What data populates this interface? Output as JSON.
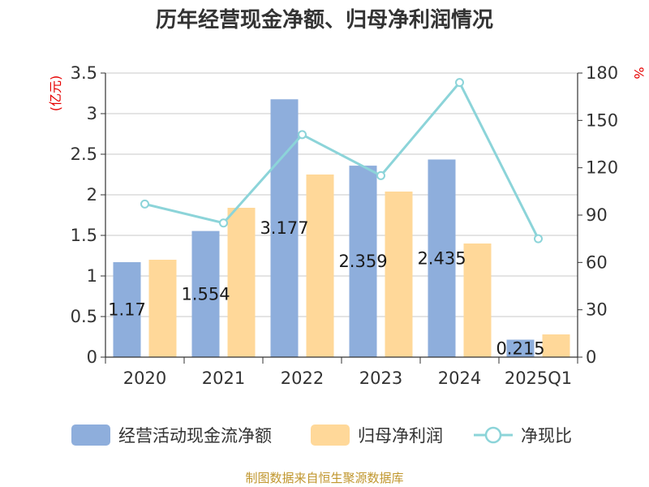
{
  "colors": {
    "cash_flow": "#8eaedc",
    "net_profit": "#ffd899",
    "ratio": "#8cd4d9",
    "axis": "#333333",
    "grid": "#c8c8c8",
    "unit": "#e60000",
    "source": "#c0962d"
  },
  "chart_data": {
    "type": "bar",
    "title": "历年经营现金净额、归母净利润情况",
    "categories": [
      "2020",
      "2021",
      "2022",
      "2023",
      "2024",
      "2025Q1"
    ],
    "left_axis": {
      "unit": "(亿元)",
      "ylim": [
        0,
        3.5
      ],
      "ticks": [
        "0",
        "0.5",
        "1",
        "1.5",
        "2",
        "2.5",
        "3",
        "3.5"
      ]
    },
    "right_axis": {
      "unit": "%",
      "ylim": [
        0,
        180
      ],
      "ticks": [
        "0",
        "30",
        "60",
        "90",
        "120",
        "150",
        "180"
      ]
    },
    "grid": true,
    "legend_position": "bottom",
    "series": [
      {
        "name": "经营活动现金流净额",
        "kind": "bar",
        "axis": "left",
        "color": "#8eaedc",
        "values": [
          1.17,
          1.554,
          3.177,
          2.359,
          2.435,
          0.215
        ],
        "labels": [
          "1.17",
          "1.554",
          "3.177",
          "2.359",
          "2.435",
          "0.215"
        ]
      },
      {
        "name": "归母净利润",
        "kind": "bar",
        "axis": "left",
        "color": "#ffd899",
        "values": [
          1.2,
          1.84,
          2.25,
          2.04,
          1.4,
          0.28
        ]
      },
      {
        "name": "净现比",
        "kind": "line",
        "axis": "right",
        "color": "#8cd4d9",
        "values": [
          97,
          85,
          141,
          115,
          174,
          75
        ]
      }
    ]
  },
  "footer": {
    "source": "制图数据来自恒生聚源数据库"
  }
}
